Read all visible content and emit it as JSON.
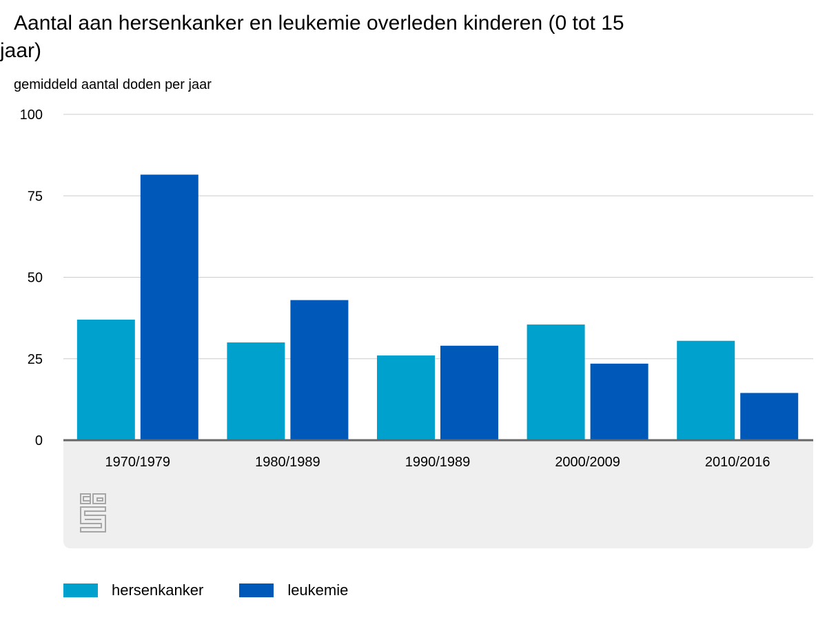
{
  "chart_data": {
    "type": "bar",
    "title": "Aantal aan hersenkanker en leukemie overleden kinderen (0 tot 15 jaar)",
    "ylabel": "gemiddeld aantal doden per jaar",
    "xlabel": "",
    "categories": [
      "1970/1979",
      "1980/1989",
      "1990/1989",
      "2000/2009",
      "2010/2016"
    ],
    "series": [
      {
        "name": "hersenkanker",
        "color": "#00a1cd",
        "values": [
          37,
          30,
          26,
          35.5,
          30.5
        ]
      },
      {
        "name": "leukemie",
        "color": "#0058b8",
        "values": [
          81.5,
          43,
          29,
          23.5,
          14.5
        ]
      }
    ],
    "ylim": [
      0,
      100
    ],
    "yticks": [
      0,
      25,
      50,
      75,
      100
    ],
    "grid": true,
    "legend_position": "bottom-left"
  },
  "logo": {
    "name": "cbs-logo",
    "text": "cbs"
  }
}
